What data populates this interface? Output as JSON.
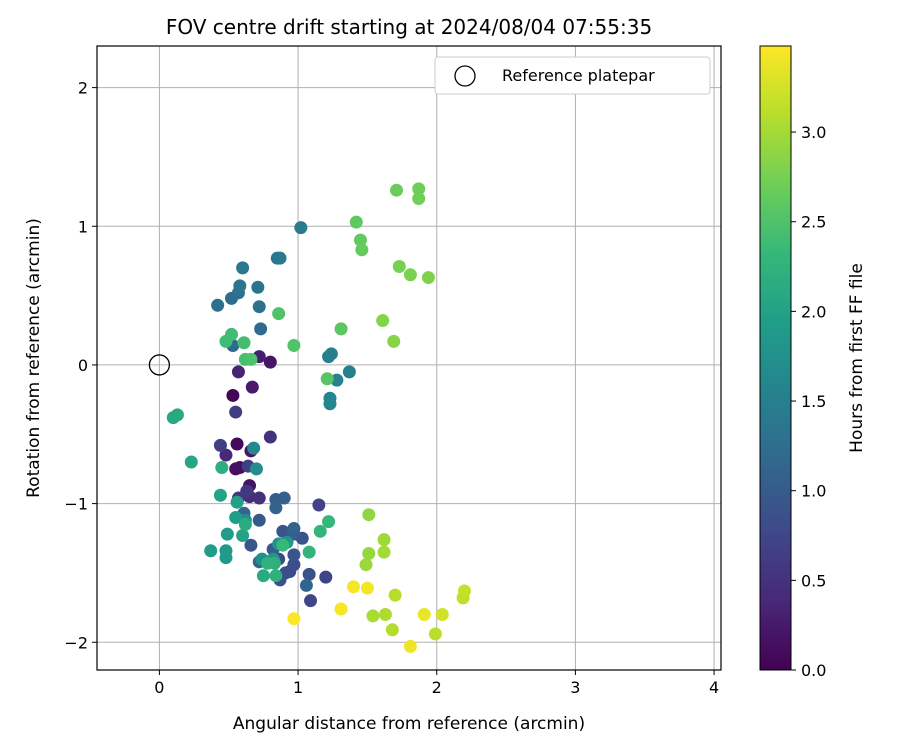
{
  "chart_data": {
    "type": "scatter",
    "title": "FOV centre drift starting at 2024/08/04 07:55:35",
    "xlabel": "Angular distance from reference (arcmin)",
    "ylabel": "Rotation from reference (arcmin)",
    "xlim": [
      -0.45,
      4.05
    ],
    "ylim": [
      -2.2,
      2.3
    ],
    "xticks": [
      0,
      1,
      2,
      3,
      4
    ],
    "yticks": [
      -2,
      -1,
      0,
      1,
      2
    ],
    "grid": true,
    "legend": {
      "position": "upper right",
      "entries": [
        "Reference platepar"
      ]
    },
    "reference_point": {
      "x": 0,
      "y": 0,
      "label": "Reference platepar"
    },
    "colorbar": {
      "label": "Hours from first FF file",
      "range": [
        0,
        3.48
      ],
      "ticks": [
        "0.0",
        "0.5",
        "1.0",
        "1.5",
        "2.0",
        "2.5",
        "3.0"
      ],
      "colormap": "viridis"
    },
    "colormap_stops": [
      "#440154",
      "#482878",
      "#3e4989",
      "#31688e",
      "#26828e",
      "#1f9e89",
      "#35b779",
      "#6ece58",
      "#b5de2b",
      "#fde725"
    ],
    "points": [
      {
        "x": 0.53,
        "y": -0.22,
        "h": 0.05
      },
      {
        "x": 0.56,
        "y": -0.57,
        "h": 0.08
      },
      {
        "x": 0.58,
        "y": -0.74,
        "h": 0.12
      },
      {
        "x": 0.55,
        "y": -0.75,
        "h": 0.15
      },
      {
        "x": 0.65,
        "y": -0.87,
        "h": 0.18
      },
      {
        "x": 0.66,
        "y": -0.62,
        "h": 0.22
      },
      {
        "x": 0.67,
        "y": -0.16,
        "h": 0.25
      },
      {
        "x": 0.72,
        "y": 0.06,
        "h": 0.3
      },
      {
        "x": 0.57,
        "y": -0.05,
        "h": 0.35
      },
      {
        "x": 0.48,
        "y": -0.65,
        "h": 0.4
      },
      {
        "x": 0.65,
        "y": -0.95,
        "h": 0.45
      },
      {
        "x": 0.72,
        "y": -0.96,
        "h": 0.48
      },
      {
        "x": 0.8,
        "y": 0.02,
        "h": 0.2
      },
      {
        "x": 0.8,
        "y": -0.52,
        "h": 0.5
      },
      {
        "x": 0.57,
        "y": -0.96,
        "h": 0.55
      },
      {
        "x": 0.63,
        "y": -0.91,
        "h": 0.6
      },
      {
        "x": 0.55,
        "y": -0.34,
        "h": 0.62
      },
      {
        "x": 0.44,
        "y": -0.58,
        "h": 0.65
      },
      {
        "x": 0.64,
        "y": -0.73,
        "h": 0.68
      },
      {
        "x": 1.15,
        "y": -1.01,
        "h": 0.7
      },
      {
        "x": 1.2,
        "y": -1.53,
        "h": 0.72
      },
      {
        "x": 1.09,
        "y": -1.7,
        "h": 0.75
      },
      {
        "x": 0.86,
        "y": -1.4,
        "h": 0.78
      },
      {
        "x": 0.94,
        "y": -1.49,
        "h": 0.8
      },
      {
        "x": 0.97,
        "y": -1.44,
        "h": 0.82
      },
      {
        "x": 0.91,
        "y": -1.5,
        "h": 0.84
      },
      {
        "x": 0.87,
        "y": -1.55,
        "h": 0.86
      },
      {
        "x": 1.08,
        "y": -1.51,
        "h": 0.88
      },
      {
        "x": 1.03,
        "y": -1.25,
        "h": 0.9
      },
      {
        "x": 0.97,
        "y": -1.37,
        "h": 0.92
      },
      {
        "x": 0.89,
        "y": -1.2,
        "h": 0.94
      },
      {
        "x": 0.66,
        "y": -1.3,
        "h": 0.96
      },
      {
        "x": 0.72,
        "y": -1.12,
        "h": 0.98
      },
      {
        "x": 0.82,
        "y": -1.33,
        "h": 1.0
      },
      {
        "x": 0.97,
        "y": -1.22,
        "h": 1.02
      },
      {
        "x": 0.84,
        "y": -0.97,
        "h": 1.04
      },
      {
        "x": 0.9,
        "y": -0.96,
        "h": 1.06
      },
      {
        "x": 0.97,
        "y": -1.18,
        "h": 1.08
      },
      {
        "x": 0.84,
        "y": -1.03,
        "h": 1.1
      },
      {
        "x": 1.06,
        "y": -1.59,
        "h": 1.12
      },
      {
        "x": 0.61,
        "y": -1.07,
        "h": 1.14
      },
      {
        "x": 0.72,
        "y": -1.42,
        "h": 1.16
      },
      {
        "x": 0.53,
        "y": 0.14,
        "h": 1.18
      },
      {
        "x": 0.73,
        "y": 0.26,
        "h": 1.2
      },
      {
        "x": 0.52,
        "y": 0.48,
        "h": 1.22
      },
      {
        "x": 0.42,
        "y": 0.43,
        "h": 1.25
      },
      {
        "x": 0.57,
        "y": 0.52,
        "h": 1.28
      },
      {
        "x": 0.72,
        "y": 0.42,
        "h": 1.3
      },
      {
        "x": 0.71,
        "y": 0.56,
        "h": 1.33
      },
      {
        "x": 0.58,
        "y": 0.57,
        "h": 1.35
      },
      {
        "x": 0.6,
        "y": 0.7,
        "h": 1.38
      },
      {
        "x": 0.85,
        "y": 0.77,
        "h": 1.4
      },
      {
        "x": 0.87,
        "y": 0.77,
        "h": 1.42
      },
      {
        "x": 1.02,
        "y": 0.99,
        "h": 1.45
      },
      {
        "x": 1.22,
        "y": 0.06,
        "h": 1.48
      },
      {
        "x": 1.24,
        "y": 0.08,
        "h": 1.5
      },
      {
        "x": 1.37,
        "y": -0.05,
        "h": 1.52
      },
      {
        "x": 1.28,
        "y": -0.11,
        "h": 1.55
      },
      {
        "x": 1.23,
        "y": -0.24,
        "h": 1.58
      },
      {
        "x": 1.23,
        "y": -0.28,
        "h": 1.6
      },
      {
        "x": 0.68,
        "y": -0.6,
        "h": 1.65
      },
      {
        "x": 0.7,
        "y": -0.75,
        "h": 1.68
      },
      {
        "x": 0.62,
        "y": -1.12,
        "h": 1.72
      },
      {
        "x": 0.74,
        "y": -1.4,
        "h": 1.75
      },
      {
        "x": 0.86,
        "y": -1.29,
        "h": 1.78
      },
      {
        "x": 0.82,
        "y": -1.4,
        "h": 1.8
      },
      {
        "x": 0.92,
        "y": -1.28,
        "h": 1.82
      },
      {
        "x": 0.48,
        "y": -1.34,
        "h": 1.85
      },
      {
        "x": 0.48,
        "y": -1.39,
        "h": 1.88
      },
      {
        "x": 0.37,
        "y": -1.34,
        "h": 1.9
      },
      {
        "x": 0.49,
        "y": -1.22,
        "h": 1.92
      },
      {
        "x": 0.55,
        "y": -1.1,
        "h": 1.95
      },
      {
        "x": 0.56,
        "y": -0.99,
        "h": 1.97
      },
      {
        "x": 0.6,
        "y": -1.23,
        "h": 2.0
      },
      {
        "x": 0.44,
        "y": -0.94,
        "h": 2.02
      },
      {
        "x": 0.23,
        "y": -0.7,
        "h": 2.05
      },
      {
        "x": 0.1,
        "y": -0.38,
        "h": 2.08
      },
      {
        "x": 0.13,
        "y": -0.36,
        "h": 2.1
      },
      {
        "x": 0.75,
        "y": -1.52,
        "h": 2.12
      },
      {
        "x": 0.62,
        "y": -1.15,
        "h": 2.15
      },
      {
        "x": 0.45,
        "y": -0.74,
        "h": 2.18
      },
      {
        "x": 0.83,
        "y": -1.43,
        "h": 2.2
      },
      {
        "x": 0.84,
        "y": -1.52,
        "h": 2.22
      },
      {
        "x": 0.78,
        "y": -1.43,
        "h": 2.25
      },
      {
        "x": 1.08,
        "y": -1.35,
        "h": 2.28
      },
      {
        "x": 1.16,
        "y": -1.2,
        "h": 2.3
      },
      {
        "x": 1.22,
        "y": -1.13,
        "h": 2.32
      },
      {
        "x": 0.89,
        "y": -1.3,
        "h": 2.34
      },
      {
        "x": 0.48,
        "y": 0.17,
        "h": 2.38
      },
      {
        "x": 0.52,
        "y": 0.22,
        "h": 2.4
      },
      {
        "x": 0.61,
        "y": 0.16,
        "h": 2.42
      },
      {
        "x": 0.62,
        "y": 0.04,
        "h": 2.45
      },
      {
        "x": 0.66,
        "y": 0.04,
        "h": 2.48
      },
      {
        "x": 0.86,
        "y": 0.37,
        "h": 2.5
      },
      {
        "x": 0.97,
        "y": 0.14,
        "h": 2.52
      },
      {
        "x": 1.21,
        "y": -0.1,
        "h": 2.55
      },
      {
        "x": 1.31,
        "y": 0.26,
        "h": 2.58
      },
      {
        "x": 1.42,
        "y": 1.03,
        "h": 2.6
      },
      {
        "x": 1.45,
        "y": 0.9,
        "h": 2.62
      },
      {
        "x": 1.46,
        "y": 0.83,
        "h": 2.65
      },
      {
        "x": 1.71,
        "y": 1.26,
        "h": 2.68
      },
      {
        "x": 1.87,
        "y": 1.27,
        "h": 2.7
      },
      {
        "x": 1.87,
        "y": 1.2,
        "h": 2.72
      },
      {
        "x": 1.73,
        "y": 0.71,
        "h": 2.75
      },
      {
        "x": 1.81,
        "y": 0.65,
        "h": 2.78
      },
      {
        "x": 1.94,
        "y": 0.63,
        "h": 2.8
      },
      {
        "x": 1.61,
        "y": 0.32,
        "h": 2.82
      },
      {
        "x": 1.69,
        "y": 0.17,
        "h": 2.85
      },
      {
        "x": 1.51,
        "y": -1.08,
        "h": 2.9
      },
      {
        "x": 1.51,
        "y": -1.36,
        "h": 2.92
      },
      {
        "x": 1.49,
        "y": -1.44,
        "h": 2.95
      },
      {
        "x": 1.62,
        "y": -1.26,
        "h": 2.97
      },
      {
        "x": 1.62,
        "y": -1.35,
        "h": 3.0
      },
      {
        "x": 1.54,
        "y": -1.81,
        "h": 3.02
      },
      {
        "x": 1.63,
        "y": -1.8,
        "h": 3.05
      },
      {
        "x": 1.68,
        "y": -1.91,
        "h": 3.08
      },
      {
        "x": 1.7,
        "y": -1.66,
        "h": 3.1
      },
      {
        "x": 1.99,
        "y": -1.94,
        "h": 3.12
      },
      {
        "x": 2.19,
        "y": -1.68,
        "h": 3.15
      },
      {
        "x": 2.2,
        "y": -1.63,
        "h": 3.18
      },
      {
        "x": 2.04,
        "y": -1.8,
        "h": 3.25
      },
      {
        "x": 1.91,
        "y": -1.8,
        "h": 3.38
      },
      {
        "x": 1.81,
        "y": -2.03,
        "h": 3.4
      },
      {
        "x": 1.5,
        "y": -1.61,
        "h": 3.42
      },
      {
        "x": 1.4,
        "y": -1.6,
        "h": 3.44
      },
      {
        "x": 1.31,
        "y": -1.76,
        "h": 3.45
      },
      {
        "x": 0.97,
        "y": -1.83,
        "h": 3.47
      }
    ]
  }
}
